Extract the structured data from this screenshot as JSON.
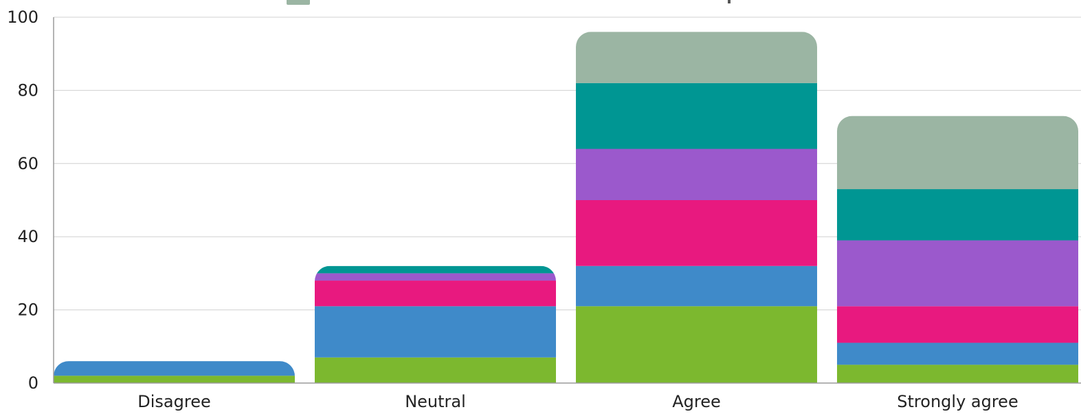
{
  "chart_data": {
    "type": "bar",
    "stacked": true,
    "categories": [
      "Disagree",
      "Neutral",
      "Agree",
      "Strongly agree"
    ],
    "series": [
      {
        "color": "#7cb82f",
        "values": [
          2,
          7,
          21,
          5
        ]
      },
      {
        "color": "#3f8ac9",
        "values": [
          4,
          14,
          11,
          6
        ]
      },
      {
        "color": "#e8197f",
        "values": [
          0,
          7,
          18,
          10
        ]
      },
      {
        "color": "#9b59cc",
        "values": [
          0,
          2,
          14,
          18
        ]
      },
      {
        "color": "#009693",
        "values": [
          0,
          2,
          18,
          14
        ]
      },
      {
        "color": "#9bb5a3",
        "values": [
          0,
          0,
          14,
          20
        ]
      }
    ],
    "ylim": [
      0,
      100
    ],
    "y_ticks": [
      "0",
      "20",
      "40",
      "60",
      "80",
      "100"
    ],
    "grid": true,
    "legend_placement": "top",
    "title": "",
    "xlabel": "",
    "ylabel": ""
  }
}
